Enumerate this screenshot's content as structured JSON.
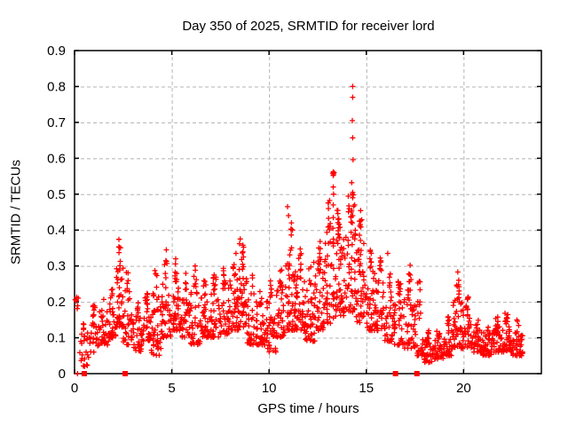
{
  "chart_data": {
    "type": "scatter",
    "title": "Day 350 of 2025, SRMTID for receiver lord",
    "xlabel": "GPS time / hours",
    "ylabel": "SRMTID / TECUs",
    "series_name": "SRMTID",
    "xlim": [
      0,
      24
    ],
    "ylim": [
      0,
      0.9
    ],
    "xticks": [
      0,
      5,
      10,
      15,
      20
    ],
    "xtick_labels": [
      "0",
      "5",
      "10",
      "15",
      "20"
    ],
    "yticks": [
      0,
      0.1,
      0.2,
      0.3,
      0.4,
      0.5,
      0.6,
      0.7,
      0.8,
      0.9
    ],
    "ytick_labels": [
      "0",
      "0.1",
      "0.2",
      "0.3",
      "0.4",
      "0.5",
      "0.6",
      "0.7",
      "0.8",
      "0.9"
    ],
    "grid": true,
    "legend": "none",
    "marker": "plus",
    "marker_color": "#ff0000",
    "grid_color": "#b3b3b3",
    "axis_color": "#000000",
    "background_color": "#ffffff",
    "seed": 350,
    "density_bins_format": [
      "hour_start",
      "hour_end",
      "y_min",
      "y_max",
      "point_count"
    ],
    "density_bins": [
      [
        0.0,
        0.2,
        0.18,
        0.225,
        6
      ],
      [
        0.25,
        0.75,
        0.02,
        0.155,
        26
      ],
      [
        0.75,
        1.25,
        0.06,
        0.19,
        30
      ],
      [
        1.25,
        1.75,
        0.08,
        0.23,
        34
      ],
      [
        1.75,
        2.15,
        0.1,
        0.26,
        30
      ],
      [
        2.15,
        2.5,
        0.13,
        0.36,
        44
      ],
      [
        2.5,
        2.95,
        0.08,
        0.29,
        36
      ],
      [
        2.95,
        3.45,
        0.06,
        0.2,
        40
      ],
      [
        3.45,
        3.95,
        0.09,
        0.23,
        40
      ],
      [
        3.95,
        4.45,
        0.05,
        0.3,
        44
      ],
      [
        4.45,
        4.95,
        0.1,
        0.33,
        44
      ],
      [
        4.95,
        5.45,
        0.12,
        0.31,
        44
      ],
      [
        5.45,
        5.95,
        0.1,
        0.28,
        40
      ],
      [
        5.95,
        6.45,
        0.08,
        0.29,
        40
      ],
      [
        6.45,
        6.95,
        0.1,
        0.26,
        40
      ],
      [
        6.95,
        7.45,
        0.1,
        0.28,
        40
      ],
      [
        7.45,
        7.95,
        0.11,
        0.3,
        42
      ],
      [
        7.95,
        8.45,
        0.12,
        0.33,
        44
      ],
      [
        8.45,
        8.85,
        0.13,
        0.36,
        44
      ],
      [
        8.85,
        9.35,
        0.08,
        0.28,
        40
      ],
      [
        9.35,
        9.85,
        0.08,
        0.23,
        40
      ],
      [
        9.85,
        10.35,
        0.06,
        0.26,
        44
      ],
      [
        10.35,
        10.85,
        0.1,
        0.29,
        42
      ],
      [
        10.85,
        11.35,
        0.12,
        0.41,
        50
      ],
      [
        11.35,
        11.85,
        0.12,
        0.35,
        50
      ],
      [
        11.85,
        12.35,
        0.09,
        0.31,
        44
      ],
      [
        12.35,
        12.85,
        0.12,
        0.37,
        46
      ],
      [
        12.85,
        13.35,
        0.14,
        0.5,
        54
      ],
      [
        13.35,
        13.85,
        0.16,
        0.46,
        54
      ],
      [
        13.85,
        14.45,
        0.17,
        0.5,
        56
      ],
      [
        14.45,
        14.95,
        0.14,
        0.46,
        50
      ],
      [
        14.95,
        15.45,
        0.12,
        0.35,
        44
      ],
      [
        15.45,
        15.95,
        0.12,
        0.33,
        42
      ],
      [
        15.95,
        16.45,
        0.09,
        0.3,
        40
      ],
      [
        16.45,
        16.95,
        0.08,
        0.26,
        40
      ],
      [
        16.95,
        17.45,
        0.07,
        0.28,
        40
      ],
      [
        17.45,
        17.95,
        0.05,
        0.26,
        40
      ],
      [
        17.95,
        18.45,
        0.03,
        0.12,
        38
      ],
      [
        18.45,
        18.95,
        0.04,
        0.12,
        38
      ],
      [
        18.95,
        19.45,
        0.05,
        0.16,
        40
      ],
      [
        19.45,
        19.95,
        0.07,
        0.26,
        44
      ],
      [
        19.95,
        20.45,
        0.07,
        0.22,
        42
      ],
      [
        20.45,
        20.95,
        0.06,
        0.15,
        40
      ],
      [
        20.95,
        21.45,
        0.05,
        0.14,
        40
      ],
      [
        21.45,
        21.95,
        0.06,
        0.16,
        40
      ],
      [
        21.95,
        22.45,
        0.06,
        0.17,
        42
      ],
      [
        22.45,
        23.05,
        0.05,
        0.15,
        44
      ]
    ],
    "peak_points": [
      [
        2.28,
        0.374
      ],
      [
        2.3,
        0.352
      ],
      [
        4.72,
        0.345
      ],
      [
        5.2,
        0.32
      ],
      [
        6.2,
        0.3
      ],
      [
        8.3,
        0.335
      ],
      [
        8.52,
        0.375
      ],
      [
        8.48,
        0.362
      ],
      [
        10.95,
        0.465
      ],
      [
        11.0,
        0.44
      ],
      [
        11.15,
        0.42
      ],
      [
        11.2,
        0.4
      ],
      [
        12.3,
        0.31
      ],
      [
        12.55,
        0.35
      ],
      [
        12.6,
        0.335
      ],
      [
        13.28,
        0.558
      ],
      [
        13.32,
        0.556
      ],
      [
        13.3,
        0.552
      ],
      [
        13.34,
        0.56
      ],
      [
        13.3,
        0.562
      ],
      [
        13.3,
        0.52
      ],
      [
        13.32,
        0.5
      ],
      [
        13.3,
        0.47
      ],
      [
        13.3,
        0.435
      ],
      [
        13.28,
        0.405
      ],
      [
        13.5,
        0.455
      ],
      [
        13.55,
        0.43
      ],
      [
        14.3,
        0.8
      ],
      [
        14.3,
        0.77
      ],
      [
        14.28,
        0.705
      ],
      [
        14.3,
        0.657
      ],
      [
        14.32,
        0.596
      ],
      [
        14.25,
        0.532
      ],
      [
        14.3,
        0.505
      ],
      [
        14.28,
        0.5
      ],
      [
        14.33,
        0.498
      ],
      [
        14.3,
        0.49
      ],
      [
        14.35,
        0.466
      ],
      [
        14.4,
        0.47
      ],
      [
        14.25,
        0.455
      ],
      [
        14.3,
        0.44
      ],
      [
        14.28,
        0.42
      ],
      [
        16.1,
        0.335
      ],
      [
        17.25,
        0.302
      ],
      [
        17.3,
        0.262
      ],
      [
        19.7,
        0.283
      ],
      [
        19.75,
        0.26
      ]
    ],
    "baseline_square_hours": [
      0.5,
      2.6,
      16.5,
      17.6
    ],
    "baseline_plus_hours": [
      0.15
    ]
  }
}
